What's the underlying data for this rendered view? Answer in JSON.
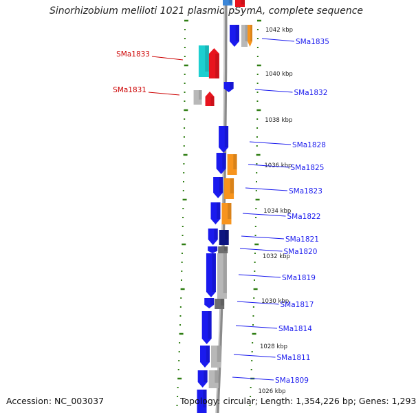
{
  "title": "Sinorhizobium meliloti 1021 plasmid pSymA, complete sequence",
  "footer": {
    "accession": "Accession: NC_003037",
    "summary": "Topology: circular; Length: 1,354,226 bp; Genes: 1,293"
  },
  "colors": {
    "forward": "#1a1aee",
    "reverse_orange": "#f7941d",
    "gray": "#b8b8b8",
    "dark_gray": "#6e6e6e",
    "navy": "#0c1480",
    "red": "#e8141e",
    "cyan": "#1ccfd0",
    "backbone": "#8a8a8a",
    "tick": "#2e7d12",
    "label_blue": "#1a1aee",
    "label_red": "#cc0000"
  },
  "kbp_labels": [
    "1042 kbp",
    "1040 kbp",
    "1038 kbp",
    "1036 kbp",
    "1034 kbp",
    "1032 kbp",
    "1030 kbp",
    "1028 kbp",
    "1026 kbp"
  ],
  "gene_labels_right": [
    "SMa1835",
    "SMa1832",
    "SMa1828",
    "SMa1825",
    "SMa1823",
    "SMa1822",
    "SMa1821",
    "SMa1820",
    "SMa1819",
    "SMa1817",
    "SMa1814",
    "SMa1811",
    "SMa1809"
  ],
  "gene_labels_left": [
    "SMa1833",
    "SMa1831"
  ]
}
